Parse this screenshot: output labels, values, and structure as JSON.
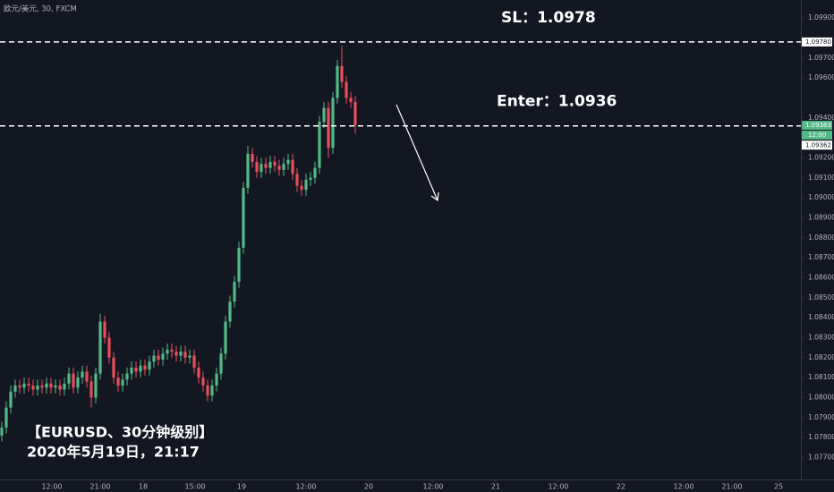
{
  "chart_data": {
    "type": "candlestick",
    "title": "欧元/美元, 30, FXCM",
    "open": [
      1.0781,
      1.0785,
      1.0795,
      1.0803,
      1.0806,
      1.0805,
      1.0807,
      1.0806,
      1.0804,
      1.0806,
      1.0805,
      1.0807,
      1.0805,
      1.0806,
      1.0804,
      1.0807,
      1.0812,
      1.0805,
      1.081,
      1.0813,
      1.0808,
      1.08,
      1.0812,
      1.0838,
      1.083,
      1.082,
      1.081,
      1.0806,
      1.0809,
      1.0812,
      1.0815,
      1.0813,
      1.0816,
      1.0814,
      1.0818,
      1.0821,
      1.0819,
      1.0822,
      1.0824,
      1.0823,
      1.0821,
      1.0823,
      1.082,
      1.0821,
      1.0815,
      1.081,
      1.0806,
      1.0801,
      1.0806,
      1.0812,
      1.0822,
      1.0838,
      1.0848,
      1.0858,
      1.0875,
      1.0905,
      1.0922,
      1.0918,
      1.0913,
      1.0917,
      1.0915,
      1.0918,
      1.0916,
      1.0914,
      1.0917,
      1.0919,
      1.0912,
      1.0906,
      1.0904,
      1.0909,
      1.091,
      1.0915,
      1.0938,
      1.0945,
      1.0925,
      1.095,
      1.0966,
      1.0958,
      1.095,
      1.0948
    ],
    "high": [
      1.0788,
      1.0798,
      1.0806,
      1.0809,
      1.0809,
      1.081,
      1.081,
      1.0809,
      1.0809,
      1.0809,
      1.081,
      1.081,
      1.0809,
      1.0809,
      1.081,
      1.0815,
      1.0815,
      1.0813,
      1.0816,
      1.0816,
      1.0811,
      1.0815,
      1.0842,
      1.0841,
      1.0833,
      1.0823,
      1.0813,
      1.0812,
      1.0815,
      1.0818,
      1.0818,
      1.0819,
      1.0819,
      1.0821,
      1.0824,
      1.0824,
      1.0825,
      1.0827,
      1.0827,
      1.0826,
      1.0826,
      1.0826,
      1.0824,
      1.0824,
      1.0818,
      1.0813,
      1.0809,
      1.0809,
      1.0815,
      1.0825,
      1.0841,
      1.0851,
      1.0861,
      1.0878,
      1.0908,
      1.0926,
      1.0925,
      1.0921,
      1.092,
      1.092,
      1.0921,
      1.0921,
      1.0919,
      1.092,
      1.0922,
      1.0922,
      1.0915,
      1.0909,
      1.0912,
      1.0913,
      1.0918,
      1.0941,
      1.0948,
      1.0948,
      1.0953,
      1.0969,
      1.0976,
      1.0961,
      1.0953,
      1.0951
    ],
    "low": [
      1.0778,
      1.0782,
      1.0792,
      1.08,
      1.0802,
      1.0802,
      1.0803,
      1.0801,
      1.0801,
      1.0802,
      1.0802,
      1.0802,
      1.0802,
      1.0801,
      1.0801,
      1.0804,
      1.0802,
      1.0802,
      1.0807,
      1.0805,
      1.0795,
      1.0797,
      1.0809,
      1.0827,
      1.0817,
      1.0807,
      1.0803,
      1.0803,
      1.0806,
      1.0809,
      1.081,
      1.081,
      1.0811,
      1.0811,
      1.0815,
      1.0816,
      1.0816,
      1.0819,
      1.082,
      1.0818,
      1.0818,
      1.0817,
      1.0817,
      1.0812,
      1.0807,
      1.0803,
      1.0798,
      1.0798,
      1.0803,
      1.0809,
      1.0819,
      1.0835,
      1.0845,
      1.0855,
      1.0872,
      1.0902,
      1.0915,
      1.091,
      1.091,
      1.0912,
      1.0912,
      1.0913,
      1.0911,
      1.0911,
      1.0914,
      1.0909,
      1.0903,
      1.0901,
      1.0901,
      1.0906,
      1.0907,
      1.0912,
      1.0935,
      1.092,
      1.0922,
      1.0947,
      1.0955,
      1.0947,
      1.0945,
      1.0932
    ],
    "close": [
      1.0785,
      1.0795,
      1.0803,
      1.0806,
      1.0805,
      1.0807,
      1.0806,
      1.0804,
      1.0806,
      1.0805,
      1.0807,
      1.0805,
      1.0806,
      1.0804,
      1.0807,
      1.0812,
      1.0805,
      1.081,
      1.0813,
      1.0808,
      1.08,
      1.0812,
      1.0838,
      1.083,
      1.082,
      1.081,
      1.0806,
      1.0809,
      1.0812,
      1.0815,
      1.0813,
      1.0816,
      1.0814,
      1.0818,
      1.0821,
      1.0819,
      1.0822,
      1.0824,
      1.0823,
      1.0821,
      1.0823,
      1.082,
      1.0821,
      1.0815,
      1.081,
      1.0806,
      1.0801,
      1.0806,
      1.0812,
      1.0822,
      1.0838,
      1.0848,
      1.0858,
      1.0875,
      1.0905,
      1.0922,
      1.0918,
      1.0913,
      1.0917,
      1.0915,
      1.0918,
      1.0916,
      1.0914,
      1.0917,
      1.0919,
      1.0912,
      1.0906,
      1.0904,
      1.0909,
      1.091,
      1.0915,
      1.0938,
      1.0945,
      1.0925,
      1.095,
      1.0966,
      1.0958,
      1.095,
      1.0948,
      1.09363
    ],
    "up_color": "#53b987",
    "down_color": "#eb4d5c",
    "xlim": [
      -0.4,
      178.6
    ],
    "xticks": [
      {
        "value": 11.2,
        "label": "12:00"
      },
      {
        "value": 22,
        "label": "21:00"
      },
      {
        "value": 31.6,
        "label": "18"
      },
      {
        "value": 43.2,
        "label": "15:00"
      },
      {
        "value": 53.6,
        "label": "19"
      },
      {
        "value": 68,
        "label": "12:00"
      },
      {
        "value": 82,
        "label": "20"
      },
      {
        "value": 96.4,
        "label": "12:00"
      },
      {
        "value": 110.4,
        "label": "21"
      },
      {
        "value": 124.4,
        "label": "12:00"
      },
      {
        "value": 138.4,
        "label": "22"
      },
      {
        "value": 152.4,
        "label": "12:00"
      },
      {
        "value": 163.2,
        "label": "21:00"
      },
      {
        "value": 173.6,
        "label": "25"
      }
    ],
    "ylim": [
      1.0759,
      1.0999
    ],
    "yticks": [
      {
        "value": 1.077,
        "label": "1.07700"
      },
      {
        "value": 1.078,
        "label": "1.07800"
      },
      {
        "value": 1.079,
        "label": "1.07900"
      },
      {
        "value": 1.08,
        "label": "1.08000"
      },
      {
        "value": 1.081,
        "label": "1.08100"
      },
      {
        "value": 1.082,
        "label": "1.08200"
      },
      {
        "value": 1.083,
        "label": "1.08300"
      },
      {
        "value": 1.084,
        "label": "1.08400"
      },
      {
        "value": 1.085,
        "label": "1.08500"
      },
      {
        "value": 1.086,
        "label": "1.08600"
      },
      {
        "value": 1.087,
        "label": "1.08700"
      },
      {
        "value": 1.088,
        "label": "1.08800"
      },
      {
        "value": 1.089,
        "label": "1.08900"
      },
      {
        "value": 1.09,
        "label": "1.09000"
      },
      {
        "value": 1.091,
        "label": "1.09100"
      },
      {
        "value": 1.092,
        "label": "1.09200"
      },
      {
        "value": 1.094,
        "label": "1.09400"
      },
      {
        "value": 1.096,
        "label": "1.09600"
      },
      {
        "value": 1.097,
        "label": "1.09700"
      },
      {
        "value": 1.099,
        "label": "1.09900"
      }
    ],
    "grid": false,
    "lines": [
      {
        "value": 1.0978,
        "label": "SL：1.0978"
      },
      {
        "value": 1.0936,
        "label": "Enter：1.0936"
      }
    ],
    "price_labels": [
      {
        "value": 1.0978,
        "label": "1.09780"
      },
      {
        "value": 1.09363,
        "label": "1.09363"
      },
      {
        "value": 1.09362,
        "label": "1.09362"
      }
    ],
    "countdown": "12:00",
    "annotations": [
      "【EURUSD、30分钟级别】",
      "2020年5月19日，21:17"
    ]
  }
}
